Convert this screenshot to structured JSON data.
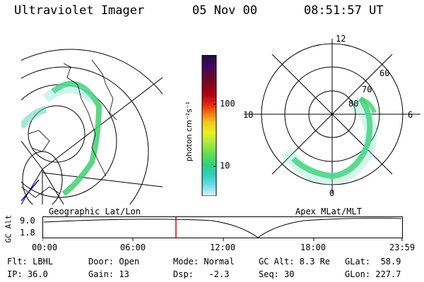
{
  "header": {
    "instrument": "Ultraviolet Imager",
    "date": "05 Nov 00",
    "time": "08:51:57 UT"
  },
  "colorbar": {
    "unit": "photon cm⁻²s⁻¹",
    "ticks": [
      "100",
      "10"
    ],
    "colors": [
      "#1a1040",
      "#400860",
      "#700820",
      "#b00010",
      "#e83010",
      "#f08010",
      "#f0c820",
      "#e8f020",
      "#b0e840",
      "#60e050",
      "#30d080",
      "#30d0c0",
      "#60d8e0",
      "#a0e8f0",
      "#e0f4f8"
    ]
  },
  "geo_panel": {
    "label": "Geographic Lat/Lon"
  },
  "apex_panel": {
    "label": "Apex MLat/MLT",
    "mlt_labels": [
      "12",
      "18",
      "6",
      "0"
    ],
    "lat_labels": [
      "60",
      "70",
      "80"
    ]
  },
  "timeline": {
    "ylabel": "GC Alt",
    "yvals": [
      "9.0",
      "1.8"
    ],
    "xticks": [
      "00:00",
      "06:00",
      "12:00",
      "18:00",
      "23:59"
    ],
    "marker_color": "#e00000"
  },
  "footer": {
    "flt": "Flt: LBHL",
    "ip": "IP: 36.0",
    "door": "Door: Open",
    "gain": "Gain: 13",
    "mode": "Mode: Normal",
    "dsp": "Dsp:   -2.3",
    "gcalt": "GC Alt: 8.3 Re",
    "seq": "Seq: 30",
    "glat": "GLat:  58.9",
    "glon": "GLon: 227.7"
  }
}
